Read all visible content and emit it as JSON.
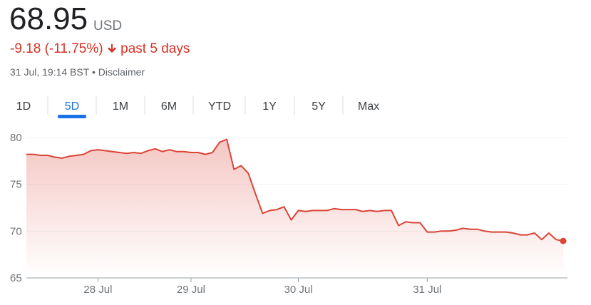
{
  "header": {
    "price": "68.95",
    "currency": "USD",
    "change": "-9.18 (-11.75%)",
    "period": "past 5 days",
    "timestamp": "31 Jul, 19:14 BST",
    "separator": "•",
    "disclaimer": "Disclaimer"
  },
  "tabs": [
    {
      "label": "1D"
    },
    {
      "label": "5D",
      "selected": true
    },
    {
      "label": "1M"
    },
    {
      "label": "6M"
    },
    {
      "label": "YTD"
    },
    {
      "label": "1Y"
    },
    {
      "label": "5Y"
    },
    {
      "label": "Max"
    }
  ],
  "chart_data": {
    "type": "line",
    "categories": [
      null,
      null,
      null,
      null,
      null,
      null,
      null,
      null,
      null,
      null,
      "28 Jul",
      null,
      null,
      null,
      null,
      null,
      null,
      null,
      null,
      null,
      null,
      null,
      null,
      "29 Jul",
      null,
      null,
      null,
      null,
      null,
      null,
      null,
      null,
      null,
      null,
      null,
      null,
      null,
      null,
      "30 Jul",
      null,
      null,
      null,
      null,
      null,
      null,
      null,
      null,
      null,
      null,
      null,
      null,
      null,
      null,
      null,
      null,
      null,
      "31 Jul",
      null,
      null,
      null,
      null,
      null,
      null,
      null,
      null,
      null,
      null,
      null,
      null,
      null,
      null,
      null,
      null,
      null,
      null,
      null
    ],
    "series": [
      {
        "color": "#db4437",
        "values": [
          78.2,
          78.2,
          78.1,
          78.1,
          77.9,
          77.8,
          78.0,
          78.1,
          78.2,
          78.6,
          78.7,
          78.6,
          78.5,
          78.4,
          78.3,
          78.4,
          78.3,
          78.6,
          78.8,
          78.5,
          78.7,
          78.5,
          78.5,
          78.4,
          78.4,
          78.2,
          78.4,
          79.5,
          79.8,
          76.6,
          77.0,
          76.2,
          74.0,
          71.9,
          72.2,
          72.3,
          72.6,
          71.2,
          72.2,
          72.1,
          72.2,
          72.2,
          72.2,
          72.4,
          72.3,
          72.3,
          72.3,
          72.1,
          72.2,
          72.1,
          72.2,
          72.2,
          70.6,
          71.0,
          70.9,
          70.9,
          69.9,
          69.9,
          70.0,
          70.0,
          70.1,
          70.3,
          70.2,
          70.2,
          70.0,
          69.9,
          69.9,
          69.9,
          69.8,
          69.6,
          69.6,
          69.8,
          69.1,
          69.8,
          69.1,
          68.95
        ]
      }
    ],
    "ylim": [
      65,
      80
    ],
    "yticks": [
      65,
      70,
      75,
      80
    ],
    "grid": true
  }
}
